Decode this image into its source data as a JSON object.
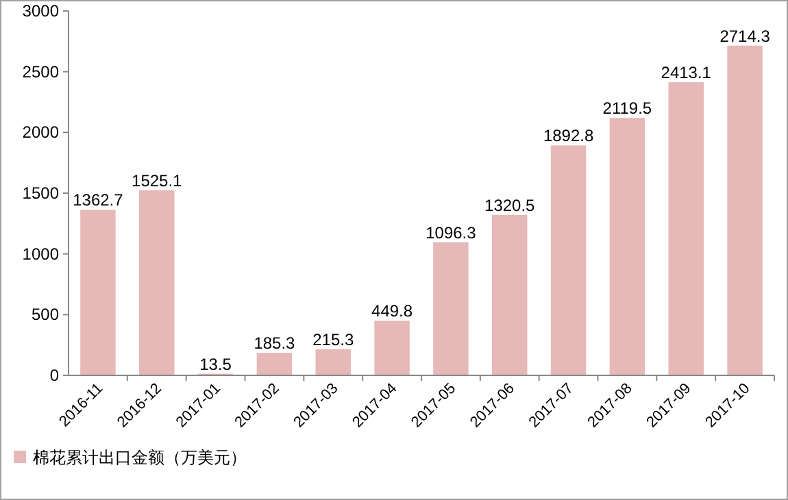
{
  "chart_data": {
    "type": "bar",
    "categories": [
      "2016-11",
      "2016-12",
      "2017-01",
      "2017-02",
      "2017-03",
      "2017-04",
      "2017-05",
      "2017-06",
      "2017-07",
      "2017-08",
      "2017-09",
      "2017-10"
    ],
    "series": [
      {
        "name": "棉花累计出口金额（万美元）",
        "color": "#e6b9b8",
        "values": [
          1362.7,
          1525.1,
          13.5,
          185.3,
          215.3,
          449.8,
          1096.3,
          1320.5,
          1892.8,
          2119.5,
          2413.1,
          2714.3
        ]
      }
    ],
    "ylim": [
      0,
      3000
    ],
    "yticks": [
      0,
      500,
      1000,
      1500,
      2000,
      2500,
      3000
    ],
    "data_labels": true,
    "legend": "bottom left",
    "grid": false
  }
}
